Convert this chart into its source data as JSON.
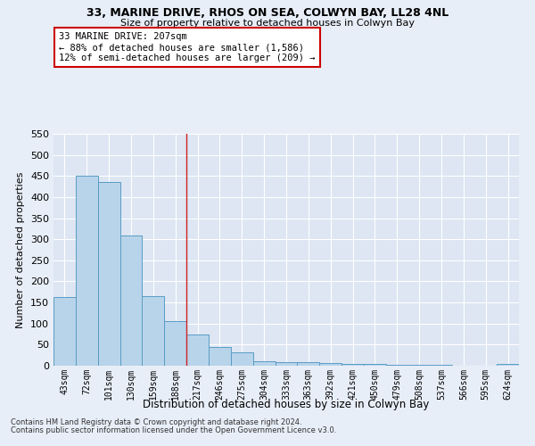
{
  "title": "33, MARINE DRIVE, RHOS ON SEA, COLWYN BAY, LL28 4NL",
  "subtitle": "Size of property relative to detached houses in Colwyn Bay",
  "xlabel": "Distribution of detached houses by size in Colwyn Bay",
  "ylabel": "Number of detached properties",
  "footnote1": "Contains HM Land Registry data © Crown copyright and database right 2024.",
  "footnote2": "Contains public sector information licensed under the Open Government Licence v3.0.",
  "categories": [
    "43sqm",
    "72sqm",
    "101sqm",
    "130sqm",
    "159sqm",
    "188sqm",
    "217sqm",
    "246sqm",
    "275sqm",
    "304sqm",
    "333sqm",
    "363sqm",
    "392sqm",
    "421sqm",
    "450sqm",
    "479sqm",
    "508sqm",
    "537sqm",
    "566sqm",
    "595sqm",
    "624sqm"
  ],
  "values": [
    163,
    450,
    435,
    308,
    165,
    106,
    73,
    44,
    31,
    10,
    9,
    8,
    6,
    4,
    4,
    3,
    3,
    2,
    1,
    1,
    5
  ],
  "bar_color": "#b8d4ea",
  "bar_edge_color": "#5a9cc5",
  "bg_color": "#dde6f2",
  "grid_color": "#ffffff",
  "red_line_x": 5.5,
  "annotation_line1": "33 MARINE DRIVE: 207sqm",
  "annotation_line2": "← 88% of detached houses are smaller (1,586)",
  "annotation_line3": "12% of semi-detached houses are larger (209) →",
  "annotation_box_color": "#ffffff",
  "annotation_box_edge": "#cc0000",
  "ylim": [
    0,
    550
  ],
  "yticks": [
    0,
    50,
    100,
    150,
    200,
    250,
    300,
    350,
    400,
    450,
    500,
    550
  ],
  "fig_facecolor": "#e8eef8",
  "title_fontsize": 9,
  "subtitle_fontsize": 8
}
